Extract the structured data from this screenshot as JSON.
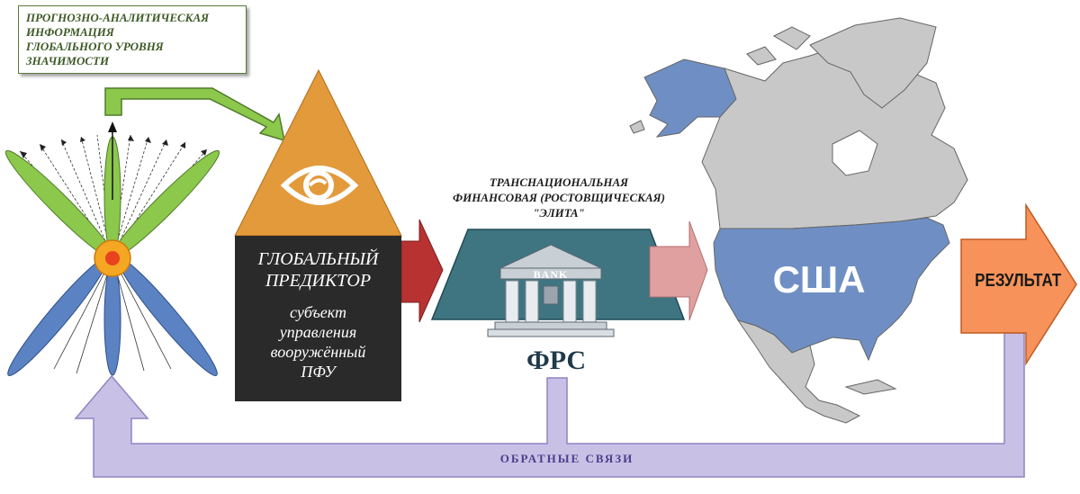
{
  "info_box": {
    "lines": [
      "ПРОГНОЗНО-АНАЛИТИЧЕСКАЯ",
      "ИНФОРМАЦИЯ",
      "ГЛОБАЛЬНОГО УРОВНЯ",
      "ЗНАЧИМОСТИ"
    ]
  },
  "predictor": {
    "title_line1": "ГЛОБАЛЬНЫЙ",
    "title_line2": "ПРЕДИКТОР",
    "subtitle_lines": [
      "субъект",
      "управления",
      "вооружённый",
      "ПФУ"
    ]
  },
  "elite": {
    "lines": [
      "ТРАНСНАЦИОНАЛЬНАЯ",
      "ФИНАНСОВАЯ (РОСТОВЩИЧЕСКАЯ)",
      "\"ЭЛИТА\""
    ]
  },
  "bank": {
    "sign": "BANK",
    "label": "ФРС"
  },
  "usa": {
    "label": "США"
  },
  "result": {
    "label": "РЕЗУЛЬТАТ"
  },
  "feedback": {
    "label": "ОБРАТНЫЕ СВЯЗИ"
  },
  "colors": {
    "green_arrow": "#8cc84b",
    "pyramid": "#e39a3b",
    "predictor_box": "#2a2a2a",
    "red_arrow": "#b83232",
    "pink_arrow": "#e0a0a0",
    "parallelogram": "#3e7580",
    "usa_fill": "#6f8fc4",
    "land_fill": "#c8c8c8",
    "result_arrow": "#f7935a",
    "feedback_arrow": "#c9c0e6"
  }
}
